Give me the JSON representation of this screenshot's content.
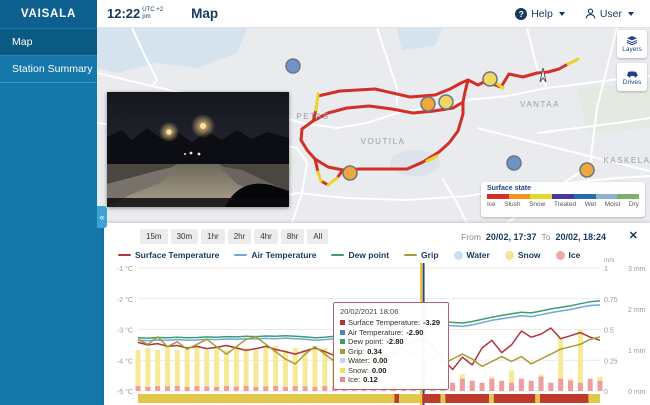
{
  "header": {
    "logo": "VAISALA",
    "time": "12:22",
    "meridiem": "pm",
    "timezone": "UTC +2",
    "title": "Map",
    "help_icon": "?",
    "help_label": "Help",
    "user_label": "User"
  },
  "sidebar": {
    "items": [
      {
        "label": "Map"
      },
      {
        "label": "Station Summary"
      }
    ]
  },
  "map": {
    "place_labels": [
      "PETAS",
      "VOUTILA",
      "VANTAA",
      "KASKELA"
    ],
    "buttons": {
      "layers": "Layers",
      "drives": "Drives"
    },
    "surface_legend": {
      "title": "Surface state",
      "states": [
        {
          "label": "Ice",
          "color": "#d23027"
        },
        {
          "label": "Slush",
          "color": "#f0941f"
        },
        {
          "label": "Snow",
          "color": "#e9d42a"
        },
        {
          "label": "Treated",
          "color": "#45399a"
        },
        {
          "label": "Wet",
          "color": "#2a6cab"
        },
        {
          "label": "Moist",
          "color": "#8cb3cd"
        },
        {
          "label": "Dry",
          "color": "#7fb069"
        }
      ]
    }
  },
  "panel": {
    "ranges": [
      "15m",
      "30m",
      "1hr",
      "2hr",
      "4hr",
      "8hr",
      "All"
    ],
    "from_label": "From",
    "from_value": "20/02, 17:37",
    "to_label": "To",
    "to_value": "20/02, 18:24",
    "close_icon": "✕",
    "collapse_icon": "«"
  },
  "tooltip": {
    "title": "20/02/2021 18:06",
    "rows": [
      {
        "label": "Surface Temperature",
        "value": "-3.29",
        "color": "#b2333f"
      },
      {
        "label": "Air Temperature",
        "value": "-2.90",
        "color": "#4f81bd"
      },
      {
        "label": "Dew point",
        "value": "-2.80",
        "color": "#3e9d6e"
      },
      {
        "label": "Grip",
        "value": "0.34",
        "color": "#a79b32"
      },
      {
        "label": "Water",
        "value": "0.00",
        "color": "#bcd9f0"
      },
      {
        "label": "Snow",
        "value": "0.00",
        "color": "#efdf6b"
      },
      {
        "label": "Ice",
        "value": "0.12",
        "color": "#e88c8c"
      }
    ]
  },
  "chart_data": {
    "type": "line+bar",
    "x_start": "20/02, 17:37",
    "x_end": "20/02, 18:24",
    "cursor": {
      "index": 29,
      "time": "20/02/2021 18:06",
      "line_color": "#2c4a6e",
      "highlight_color": "#f2c12e"
    },
    "axes": {
      "left": {
        "unit": "°C",
        "ticks": [
          {
            "label": "-1 °C",
            "v": -1
          },
          {
            "label": "-2 °C",
            "v": -2
          },
          {
            "label": "-3 °C",
            "v": -3
          },
          {
            "label": "-4 °C",
            "v": -4
          },
          {
            "label": "-5 °C",
            "v": -5
          }
        ]
      },
      "right_ms": {
        "unit": "m/s",
        "ticks": [
          {
            "label": "1",
            "v": 1
          },
          {
            "label": "0.75",
            "v": 0.75
          },
          {
            "label": "0.5",
            "v": 0.5
          },
          {
            "label": "0.25",
            "v": 0.25
          },
          {
            "label": "0",
            "v": 0
          }
        ]
      },
      "right_mm": {
        "unit": "mm",
        "ticks": [
          {
            "label": "3 mm",
            "v": 3
          },
          {
            "label": "2 mm",
            "v": 2
          },
          {
            "label": "1 mm",
            "v": 1
          },
          {
            "label": "0 mm",
            "v": 0
          }
        ]
      }
    },
    "legend": [
      {
        "label": "Surface Temperature",
        "color": "#b2333f",
        "type": "line"
      },
      {
        "label": "Air Temperature",
        "color": "#6fa8dc",
        "type": "line"
      },
      {
        "label": "Dew point",
        "color": "#3e9d6e",
        "type": "line"
      },
      {
        "label": "Grip",
        "color": "#a79b32",
        "type": "line"
      },
      {
        "label": "Water",
        "color": "#c9e0f2",
        "type": "dot"
      },
      {
        "label": "Snow",
        "color": "#f3e693",
        "type": "dot"
      },
      {
        "label": "Ice",
        "color": "#eeaaa4",
        "type": "dot"
      }
    ],
    "series": [
      {
        "name": "Surface Temperature",
        "color": "#b2333f",
        "axis": "C",
        "values": [
          -3.42,
          -3.5,
          -3.46,
          -3.55,
          -3.52,
          -3.6,
          -3.55,
          -3.62,
          -3.58,
          -3.52,
          -3.6,
          -3.68,
          -3.62,
          -3.55,
          -3.65,
          -3.72,
          -3.8,
          -3.7,
          -3.6,
          -3.72,
          -3.85,
          -4.05,
          -3.9,
          -3.7,
          -3.85,
          -3.95,
          -3.75,
          -3.55,
          -3.4,
          -3.29,
          -3.55,
          -3.95,
          -4.3,
          -3.9,
          -4.15,
          -3.6,
          -3.35,
          -3.75,
          -3.5,
          -3.05,
          -3.25,
          -3.15,
          -2.95,
          -3.3,
          -3.2,
          -3.1,
          -3.25,
          -3.35
        ]
      },
      {
        "name": "Air Temperature",
        "color": "#6fa8dc",
        "axis": "C",
        "values": [
          -3.35,
          -3.36,
          -3.34,
          -3.35,
          -3.33,
          -3.35,
          -3.34,
          -3.32,
          -3.33,
          -3.31,
          -3.32,
          -3.3,
          -3.31,
          -3.29,
          -3.3,
          -3.28,
          -3.3,
          -3.32,
          -3.35,
          -3.33,
          -3.3,
          -3.28,
          -3.25,
          -3.22,
          -3.18,
          -3.12,
          -3.05,
          -3.0,
          -2.95,
          -2.9,
          -2.88,
          -2.85,
          -2.88,
          -2.9,
          -2.85,
          -2.78,
          -2.7,
          -2.65,
          -2.6,
          -2.55,
          -2.58,
          -2.52,
          -2.45,
          -2.4,
          -2.35,
          -2.28,
          -2.22,
          -2.2
        ]
      },
      {
        "name": "Dew point",
        "color": "#3e9d6e",
        "axis": "C",
        "values": [
          -3.27,
          -3.28,
          -3.26,
          -3.27,
          -3.25,
          -3.27,
          -3.26,
          -3.24,
          -3.25,
          -3.23,
          -3.24,
          -3.22,
          -3.23,
          -3.21,
          -3.22,
          -3.2,
          -3.22,
          -3.24,
          -3.27,
          -3.25,
          -3.22,
          -3.2,
          -3.17,
          -3.13,
          -3.08,
          -3.02,
          -2.95,
          -2.9,
          -2.85,
          -2.8,
          -2.78,
          -2.75,
          -2.77,
          -2.79,
          -2.74,
          -2.67,
          -2.6,
          -2.54,
          -2.49,
          -2.44,
          -2.46,
          -2.4,
          -2.33,
          -2.28,
          -2.23,
          -2.16,
          -2.1,
          -2.07
        ]
      },
      {
        "name": "Grip",
        "color": "#a79b32",
        "axis": "ms",
        "values": [
          0.42,
          0.38,
          0.44,
          0.36,
          0.4,
          0.34,
          0.38,
          0.42,
          0.36,
          0.3,
          0.36,
          0.42,
          0.44,
          0.38,
          0.32,
          0.26,
          0.22,
          0.3,
          0.36,
          0.3,
          0.24,
          0.2,
          0.26,
          0.32,
          0.28,
          0.22,
          0.28,
          0.34,
          0.3,
          0.34,
          0.28,
          0.22,
          0.26,
          0.3,
          0.26,
          0.2,
          0.24,
          0.28,
          0.24,
          0.28,
          0.22,
          0.26,
          0.3,
          0.34,
          0.36,
          0.38,
          0.42,
          0.44
        ]
      }
    ],
    "bars": [
      {
        "name": "Snow",
        "color": "#f6ea96",
        "axis": "mm",
        "values": [
          1.0,
          1.05,
          1.0,
          1.1,
          1.0,
          1.05,
          1.1,
          1.0,
          1.05,
          1.0,
          1.1,
          1.05,
          1.0,
          1.05,
          1.1,
          1.0,
          1.05,
          1.0,
          1.1,
          1.05,
          1.0,
          1.05,
          1.0,
          1.1,
          1.05,
          1.0,
          0.9,
          0.5,
          0.2,
          0.0,
          0.1,
          0.3,
          0.15,
          0.4,
          0.2,
          0.1,
          0.35,
          0.15,
          0.5,
          0.25,
          0.1,
          0.4,
          0.2,
          1.3,
          0.3,
          1.5,
          0.2,
          0.35
        ]
      },
      {
        "name": "Water",
        "color": "#bcd9f0",
        "axis": "mm",
        "values": [
          0,
          0,
          0,
          0,
          0,
          0,
          0,
          0,
          0,
          0,
          0,
          0,
          0,
          0,
          0,
          0,
          0,
          0,
          0,
          0,
          0,
          0,
          0,
          0,
          0,
          0,
          0,
          0,
          0,
          0,
          0,
          0,
          0,
          0.15,
          0,
          0,
          0,
          0,
          0,
          0,
          0,
          0,
          0,
          0,
          0.1,
          0,
          0,
          0
        ]
      },
      {
        "name": "Ice",
        "color": "#ee9e9e",
        "axis": "mm",
        "values": [
          0.12,
          0.1,
          0.12,
          0.11,
          0.12,
          0.1,
          0.12,
          0.11,
          0.1,
          0.12,
          0.11,
          0.12,
          0.1,
          0.11,
          0.12,
          0.1,
          0.12,
          0.11,
          0.1,
          0.12,
          0.11,
          0.1,
          0.12,
          0.11,
          0.12,
          0.1,
          0.11,
          0.12,
          0.1,
          0.12,
          0.2,
          0.25,
          0.2,
          0.3,
          0.25,
          0.2,
          0.3,
          0.25,
          0.2,
          0.3,
          0.25,
          0.35,
          0.2,
          0.3,
          0.25,
          0.2,
          0.3,
          0.25
        ]
      }
    ],
    "surface_strip": {
      "segments": [
        {
          "color": "#e2c84a",
          "from": 0,
          "to": 0.555
        },
        {
          "color": "#bf3a2b",
          "from": 0.555,
          "to": 0.565
        },
        {
          "color": "#e2c84a",
          "from": 0.565,
          "to": 0.615
        },
        {
          "color": "#bf3a2b",
          "from": 0.615,
          "to": 0.655
        },
        {
          "color": "#e2c84a",
          "from": 0.655,
          "to": 0.665
        },
        {
          "color": "#bf3a2b",
          "from": 0.665,
          "to": 0.76
        },
        {
          "color": "#e2c84a",
          "from": 0.76,
          "to": 0.77
        },
        {
          "color": "#bf3a2b",
          "from": 0.77,
          "to": 0.86
        },
        {
          "color": "#e2c84a",
          "from": 0.86,
          "to": 0.87
        },
        {
          "color": "#bf3a2b",
          "from": 0.87,
          "to": 0.975
        },
        {
          "color": "#e2c84a",
          "from": 0.975,
          "to": 1.0
        }
      ]
    }
  }
}
